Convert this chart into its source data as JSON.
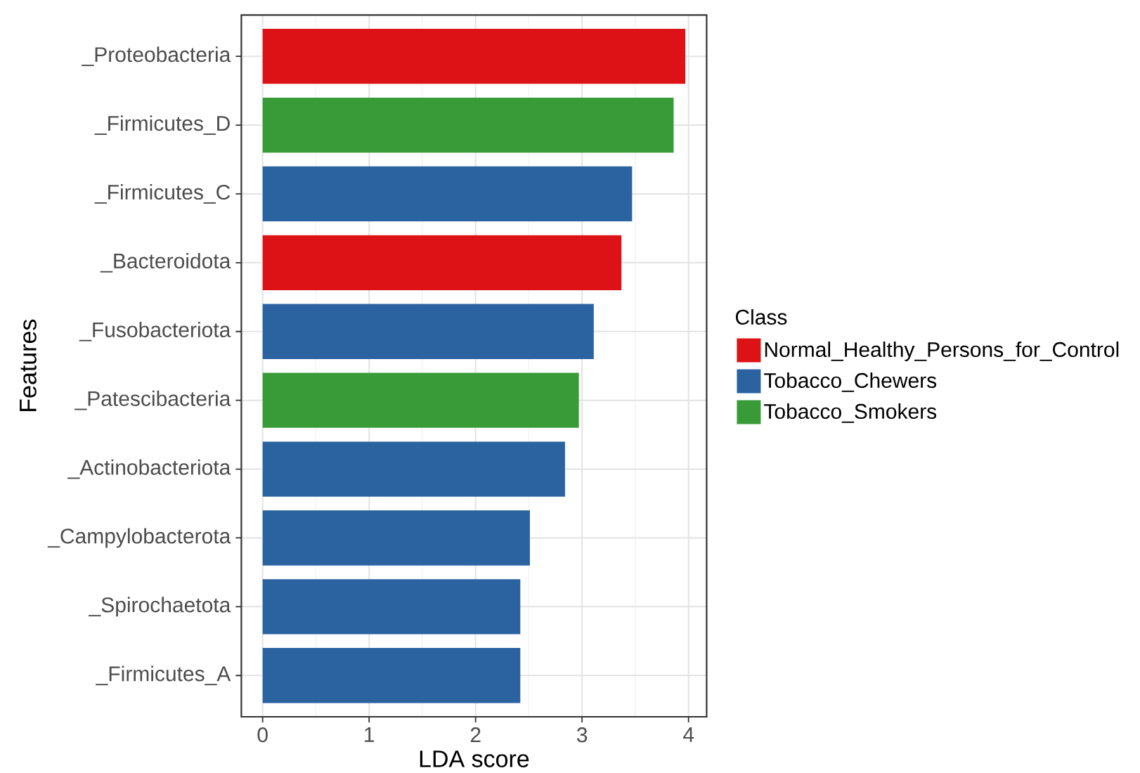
{
  "chart_data": {
    "type": "bar",
    "orientation": "horizontal",
    "xlabel": "LDA score",
    "ylabel": "Features",
    "legend_title": "Class",
    "categories": [
      "_Proteobacteria",
      "_Firmicutes_D",
      "_Firmicutes_C",
      "_Bacteroidota",
      "_Fusobacteriota",
      "_Patescibacteria",
      "_Actinobacteriota",
      "_Campylobacterota",
      "_Spirochaetota",
      "_Firmicutes_A"
    ],
    "series": [
      {
        "name": "Normal_Healthy_Persons_for_Control",
        "color": "#dd1216",
        "values": [
          3.97,
          null,
          null,
          3.37,
          null,
          null,
          null,
          null,
          null,
          null
        ]
      },
      {
        "name": "Tobacco_Chewers",
        "color": "#2b63a1",
        "values": [
          null,
          null,
          3.47,
          null,
          3.11,
          null,
          2.84,
          2.51,
          2.42,
          2.42
        ]
      },
      {
        "name": "Tobacco_Smokers",
        "color": "#389b37",
        "values": [
          null,
          3.86,
          null,
          null,
          null,
          2.97,
          null,
          null,
          null,
          null
        ]
      }
    ],
    "xlim": [
      -0.2,
      4.17
    ],
    "xticks": [
      0,
      1,
      2,
      3,
      4
    ],
    "grid": true,
    "legend": "right"
  }
}
